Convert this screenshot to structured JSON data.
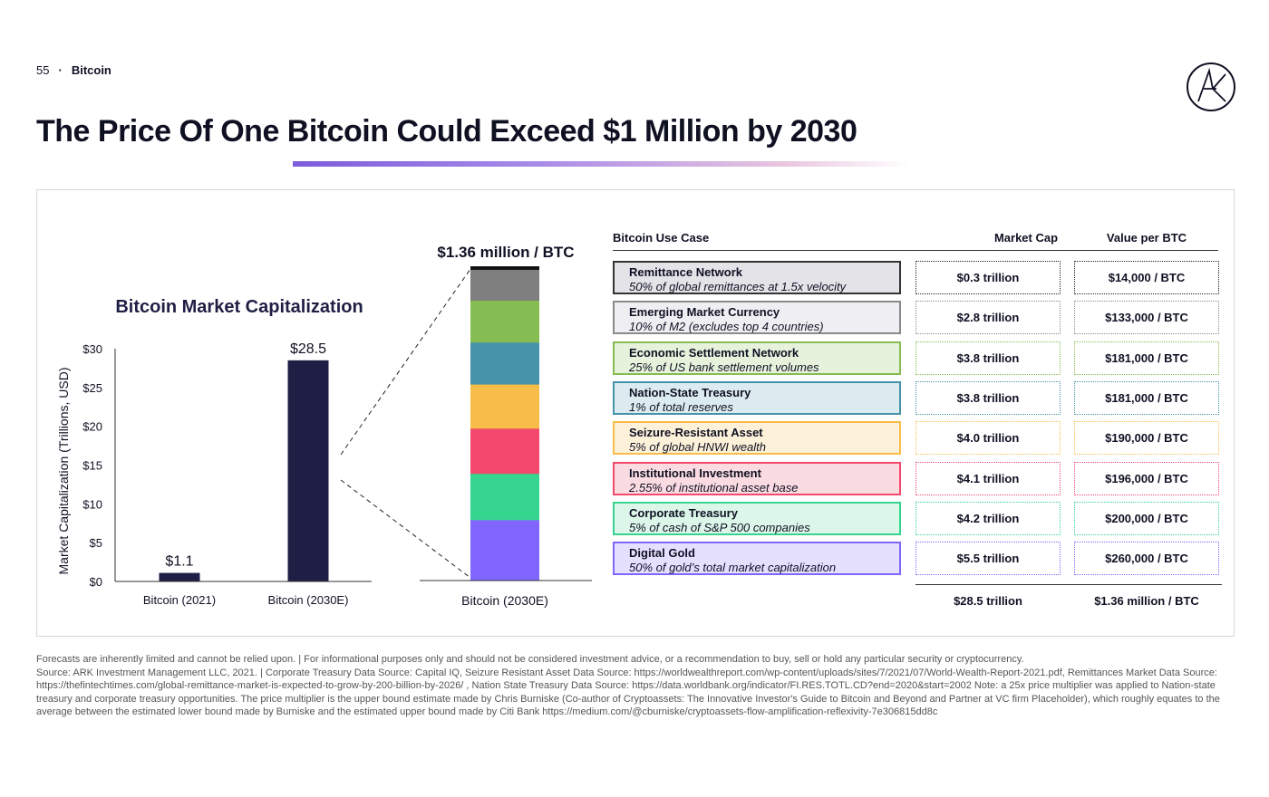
{
  "header": {
    "page": "55",
    "section": "Bitcoin"
  },
  "title": "The Price Of One Bitcoin Could Exceed $1 Million by 2030",
  "colors": {
    "bar": "#1f1f45",
    "accent": "#7c5cdb"
  },
  "chart_data": [
    {
      "type": "bar",
      "title": "Bitcoin Market Capitalization",
      "ylabel": "Market Capitalization (Trillions, USD)",
      "categories": [
        "Bitcoin (2021)",
        "Bitcoin (2030E)"
      ],
      "values": [
        1.1,
        28.5
      ],
      "value_labels": [
        "$1.1",
        "$28.5"
      ],
      "yticks": [
        0,
        5,
        10,
        15,
        20,
        25,
        30
      ],
      "ytick_labels": [
        "$0",
        "$5",
        "$10",
        "$15",
        "$20",
        "$25",
        "$30"
      ],
      "ylim": [
        0,
        30
      ],
      "grid": false
    },
    {
      "type": "bar",
      "stacked": true,
      "title": "$1.36 million / BTC",
      "categories": [
        "Bitcoin (2030E)"
      ],
      "series": [
        {
          "name": "Digital Gold",
          "values": [
            5.5
          ],
          "color": "#8066ff"
        },
        {
          "name": "Corporate Treasury",
          "values": [
            4.2
          ],
          "color": "#35d48f"
        },
        {
          "name": "Institutional Investment",
          "values": [
            4.1
          ],
          "color": "#f2496c"
        },
        {
          "name": "Seizure-Resistant Asset",
          "values": [
            4.0
          ],
          "color": "#f8bd48"
        },
        {
          "name": "Nation-State Treasury",
          "values": [
            3.8
          ],
          "color": "#4593a8"
        },
        {
          "name": "Economic Settlement Network",
          "values": [
            3.8
          ],
          "color": "#86bd52"
        },
        {
          "name": "Emerging Market Currency",
          "values": [
            2.8
          ],
          "color": "#7e7e7e"
        },
        {
          "name": "Remittance Network",
          "values": [
            0.3
          ],
          "color": "#111111"
        }
      ]
    }
  ],
  "table": {
    "headers": {
      "use_case": "Bitcoin Use Case",
      "market_cap": "Market Cap",
      "value_per_btc": "Value per BTC"
    },
    "rows": [
      {
        "name": "Remittance Network",
        "desc": "50% of global remittances at 1.5x velocity",
        "market_cap": "$0.3 trillion",
        "value": "$14,000 / BTC",
        "border": "#333333",
        "bg": "#e3e3e8"
      },
      {
        "name": "Emerging Market Currency",
        "desc": "10% of M2 (excludes top 4 countries)",
        "market_cap": "$2.8 trillion",
        "value": "$133,000 / BTC",
        "border": "#8a8a8a",
        "bg": "#efeff3"
      },
      {
        "name": "Economic Settlement Network",
        "desc": "25% of US bank settlement volumes",
        "market_cap": "$3.8 trillion",
        "value": "$181,000 / BTC",
        "border": "#86bd52",
        "bg": "#e7f2dc"
      },
      {
        "name": "Nation-State Treasury",
        "desc": "1% of total reserves",
        "market_cap": "$3.8 trillion",
        "value": "$181,000 / BTC",
        "border": "#4593a8",
        "bg": "#dcebef"
      },
      {
        "name": "Seizure-Resistant Asset",
        "desc": "5% of global HNWI wealth",
        "market_cap": "$4.0 trillion",
        "value": "$190,000 / BTC",
        "border": "#f8bd48",
        "bg": "#fdf1d9"
      },
      {
        "name": "Institutional Investment",
        "desc": "2.55% of institutional asset base",
        "market_cap": "$4.1 trillion",
        "value": "$196,000 / BTC",
        "border": "#f2496c",
        "bg": "#fbdbe2"
      },
      {
        "name": "Corporate Treasury",
        "desc": "5% of cash of S&P 500 companies",
        "market_cap": "$4.2 trillion",
        "value": "$200,000 / BTC",
        "border": "#35d48f",
        "bg": "#dcf6e9"
      },
      {
        "name": "Digital Gold",
        "desc": "50% of gold’s total market capitalization",
        "market_cap": "$5.5 trillion",
        "value": "$260,000 / BTC",
        "border": "#8066ff",
        "bg": "#e6e0ff"
      }
    ],
    "totals": {
      "market_cap": "$28.5 trillion",
      "value": "$1.36 million / BTC"
    }
  },
  "footnote": [
    "Forecasts are inherently limited and cannot be relied upon. | For informational purposes only and should not be considered investment advice, or a recommendation to buy, sell or hold any particular security or cryptocurrency.",
    "Source: ARK Investment Management LLC, 2021. | Corporate Treasury Data Source: Capital IQ, Seizure Resistant Asset Data Source: https://worldwealthreport.com/wp-content/uploads/sites/7/2021/07/World-Wealth-Report-2021.pdf, Remittances Market Data Source: https://thefintechtimes.com/global-remittance-market-is-expected-to-grow-by-200-billion-by-2026/ , Nation State Treasury Data Source: https://data.worldbank.org/indicator/FI.RES.TOTL.CD?end=2020&start=2002 Note: a 25x price multiplier was applied to Nation-state treasury and corporate treasury opportunities. The price multiplier is the upper bound estimate made by Chris Burniske (Co-author of Cryptoassets: The Innovative Investor's Guide to Bitcoin and Beyond and Partner at VC firm Placeholder), which roughly equates to the average between the estimated lower bound made by Burniske and the estimated upper bound made by Citi Bank https://medium.com/@cburniske/cryptoassets-flow-amplification-reflexivity-7e306815dd8c"
  ]
}
